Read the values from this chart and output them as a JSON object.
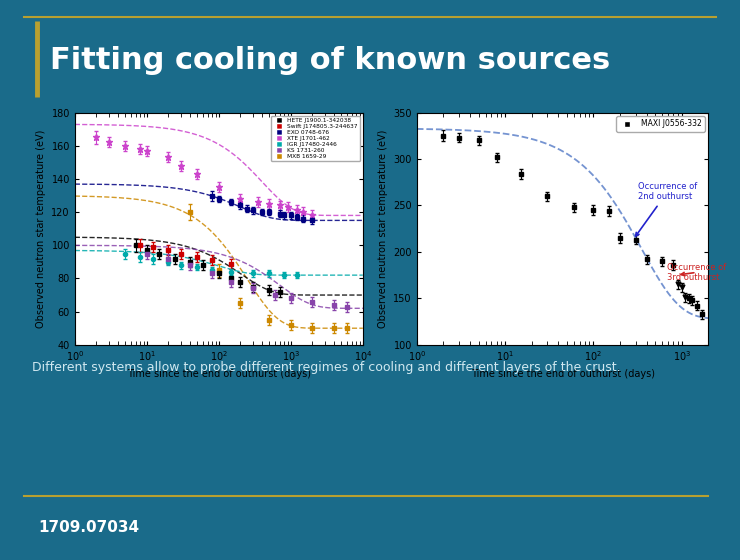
{
  "title": "Fitting cooling of known sources",
  "subtitle": "Different systems allow to probe different regimes of cooling and different layers of the crust.",
  "arxiv": "1709.07034",
  "bg_color": "#1a6b8a",
  "title_color": "#ffffff",
  "subtitle_color": "#d0e8f0",
  "arxiv_color": "#ffffff",
  "title_bar_color": "#b8a030",
  "left_plot": {
    "xlabel": "Time since the end of outhurst (days)",
    "ylabel": "Observed neutron star temperature (eV)",
    "xlim": [
      1,
      10000
    ],
    "ylim": [
      40,
      180
    ],
    "yticks": [
      40,
      60,
      80,
      100,
      120,
      140,
      160,
      180
    ],
    "legend_entries": [
      {
        "label": "HETE J1900.1-342038",
        "color": "#000000"
      },
      {
        "label": "Swift J174805.3-244637",
        "color": "#cc0000"
      },
      {
        "label": "EXO 0748-676",
        "color": "#000080"
      },
      {
        "label": "XTE J1701-462",
        "color": "#cc44cc"
      },
      {
        "label": "IGR J17480-2446",
        "color": "#00aaaa"
      },
      {
        "label": "KS 1731-260",
        "color": "#8844aa"
      },
      {
        "label": "MXB 1659-29",
        "color": "#cc8800"
      }
    ]
  },
  "right_plot": {
    "xlabel": "Time since the end of outhurst (days)",
    "ylabel": "Observed neutron star temperature (eV)",
    "xlim": [
      1,
      2000
    ],
    "ylim": [
      100,
      350
    ],
    "yticks": [
      100,
      150,
      200,
      250,
      300,
      350
    ],
    "legend_label": "MAXI J0556-332",
    "annotation1_text": "Occurrence of\n2nd outhurst",
    "annotation1_color": "#2222cc",
    "annotation2_text": "Occurrence of\n3rd outhurst",
    "annotation2_color": "#cc2222"
  }
}
